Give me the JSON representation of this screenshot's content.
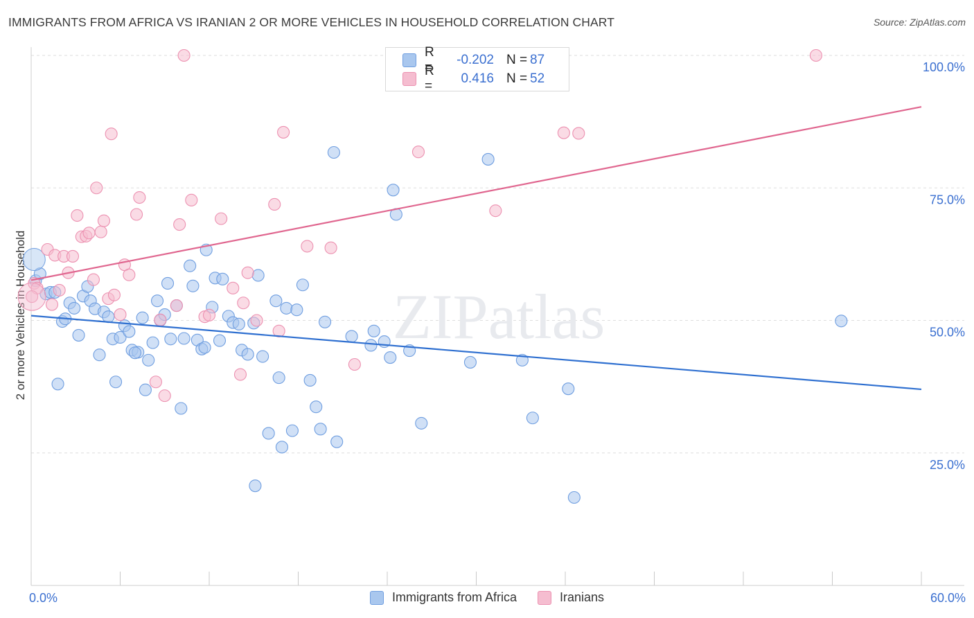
{
  "title": "IMMIGRANTS FROM AFRICA VS IRANIAN 2 OR MORE VEHICLES IN HOUSEHOLD CORRELATION CHART",
  "source": "Source: ZipAtlas.com",
  "watermark": "ZIPatlas",
  "legend_top": [
    {
      "r_label": "R =",
      "r_value": "-0.202",
      "n_label": "N =",
      "n_value": "87"
    },
    {
      "r_label": "R =",
      "r_value": "0.416",
      "n_label": "N =",
      "n_value": "52"
    }
  ],
  "legend_bottom": [
    "Immigrants from Africa",
    "Iranians"
  ],
  "x_tick_left": "0.0%",
  "x_tick_right": "60.0%",
  "colors": {
    "blue_fill": "#a9c7ee",
    "blue_stroke": "#6f9ee0",
    "blue_line": "#2e6fd0",
    "pink_fill": "#f5bdd0",
    "pink_stroke": "#ec90b0",
    "pink_line": "#e0668f",
    "tick_text": "#3a6fd0",
    "grid": "#dddddd"
  },
  "chart_data": {
    "type": "scatter",
    "title": "IMMIGRANTS FROM AFRICA VS IRANIAN 2 OR MORE VEHICLES IN HOUSEHOLD CORRELATION CHART",
    "xlabel": "",
    "ylabel": "2 or more Vehicles in Household",
    "xlim": [
      0,
      60
    ],
    "ylim": [
      0,
      105
    ],
    "y_ticks": [
      {
        "value": 25,
        "label": "25.0%"
      },
      {
        "value": 50,
        "label": "50.0%"
      },
      {
        "value": 75,
        "label": "75.0%"
      },
      {
        "value": 100,
        "label": "100.0%"
      }
    ],
    "grid": "horizontal dashed",
    "legend": "top-center and bottom",
    "series": [
      {
        "name": "Immigrants from Africa",
        "r": -0.202,
        "n": 87,
        "trend": [
          [
            0,
            50.9
          ],
          [
            60,
            37.0
          ]
        ],
        "points": [
          [
            0.3,
            57.5
          ],
          [
            0.6,
            58.8
          ],
          [
            1.0,
            55.0
          ],
          [
            1.3,
            55.3
          ],
          [
            1.6,
            55.3
          ],
          [
            1.8,
            38.0
          ],
          [
            2.1,
            49.8
          ],
          [
            2.3,
            50.3
          ],
          [
            2.6,
            53.3
          ],
          [
            2.9,
            52.3
          ],
          [
            3.2,
            47.2
          ],
          [
            3.5,
            54.6
          ],
          [
            3.8,
            56.4
          ],
          [
            4.0,
            53.7
          ],
          [
            4.3,
            52.2
          ],
          [
            4.6,
            43.5
          ],
          [
            4.9,
            51.6
          ],
          [
            5.2,
            50.7
          ],
          [
            5.5,
            46.5
          ],
          [
            5.7,
            38.4
          ],
          [
            6.0,
            46.8
          ],
          [
            6.3,
            49.0
          ],
          [
            6.6,
            47.9
          ],
          [
            6.8,
            44.4
          ],
          [
            7.2,
            44.0
          ],
          [
            7.5,
            50.5
          ],
          [
            7.7,
            36.9
          ],
          [
            7.9,
            42.5
          ],
          [
            8.2,
            45.8
          ],
          [
            8.5,
            53.7
          ],
          [
            8.7,
            50.0
          ],
          [
            9.0,
            51.1
          ],
          [
            9.2,
            57.0
          ],
          [
            9.4,
            46.5
          ],
          [
            9.8,
            52.8
          ],
          [
            10.1,
            33.4
          ],
          [
            10.3,
            46.6
          ],
          [
            10.7,
            60.3
          ],
          [
            10.9,
            56.5
          ],
          [
            11.2,
            46.3
          ],
          [
            11.5,
            44.6
          ],
          [
            11.8,
            63.3
          ],
          [
            12.2,
            52.5
          ],
          [
            12.4,
            58.0
          ],
          [
            12.7,
            46.2
          ],
          [
            12.9,
            57.8
          ],
          [
            13.3,
            50.8
          ],
          [
            13.6,
            49.6
          ],
          [
            14.0,
            49.3
          ],
          [
            14.2,
            44.4
          ],
          [
            14.6,
            43.6
          ],
          [
            15.0,
            49.5
          ],
          [
            15.3,
            58.5
          ],
          [
            15.6,
            43.2
          ],
          [
            16.0,
            28.7
          ],
          [
            16.5,
            53.7
          ],
          [
            16.7,
            39.2
          ],
          [
            16.9,
            26.1
          ],
          [
            17.2,
            52.3
          ],
          [
            17.6,
            29.2
          ],
          [
            17.9,
            52.0
          ],
          [
            18.3,
            56.7
          ],
          [
            18.8,
            38.7
          ],
          [
            19.2,
            33.7
          ],
          [
            19.5,
            29.5
          ],
          [
            19.8,
            49.7
          ],
          [
            20.4,
            81.7
          ],
          [
            20.6,
            27.1
          ],
          [
            21.6,
            47.0
          ],
          [
            22.9,
            45.3
          ],
          [
            23.1,
            48.0
          ],
          [
            23.8,
            46.0
          ],
          [
            24.2,
            43.0
          ],
          [
            24.4,
            74.6
          ],
          [
            24.6,
            70.0
          ],
          [
            25.5,
            44.3
          ],
          [
            26.3,
            30.6
          ],
          [
            29.6,
            42.1
          ],
          [
            30.8,
            80.4
          ],
          [
            33.1,
            42.5
          ],
          [
            33.8,
            31.6
          ],
          [
            36.2,
            37.1
          ],
          [
            36.6,
            16.6
          ],
          [
            15.1,
            18.8
          ],
          [
            11.7,
            44.9
          ],
          [
            7.0,
            43.9
          ],
          [
            54.6,
            49.9
          ]
        ]
      },
      {
        "name": "Iranians",
        "r": 0.416,
        "n": 52,
        "trend": [
          [
            0,
            57.6
          ],
          [
            60,
            90.3
          ]
        ],
        "points": [
          [
            0.2,
            57.0
          ],
          [
            0.4,
            56.1
          ],
          [
            1.1,
            63.4
          ],
          [
            1.4,
            53.0
          ],
          [
            1.6,
            62.3
          ],
          [
            1.9,
            55.7
          ],
          [
            2.2,
            62.1
          ],
          [
            2.5,
            59.0
          ],
          [
            2.8,
            62.1
          ],
          [
            3.1,
            69.8
          ],
          [
            3.4,
            65.8
          ],
          [
            3.7,
            65.9
          ],
          [
            3.9,
            66.5
          ],
          [
            4.2,
            57.7
          ],
          [
            4.4,
            75.0
          ],
          [
            4.7,
            66.7
          ],
          [
            4.9,
            68.8
          ],
          [
            5.2,
            54.1
          ],
          [
            5.4,
            85.2
          ],
          [
            5.6,
            54.8
          ],
          [
            6.0,
            51.1
          ],
          [
            6.3,
            60.5
          ],
          [
            6.6,
            58.6
          ],
          [
            7.1,
            70.0
          ],
          [
            7.3,
            73.2
          ],
          [
            8.4,
            38.4
          ],
          [
            8.7,
            50.1
          ],
          [
            9.0,
            35.8
          ],
          [
            9.8,
            52.8
          ],
          [
            10.0,
            68.1
          ],
          [
            10.3,
            100.0
          ],
          [
            10.8,
            72.7
          ],
          [
            11.7,
            50.7
          ],
          [
            12.0,
            51.0
          ],
          [
            12.8,
            69.2
          ],
          [
            13.6,
            56.1
          ],
          [
            14.1,
            39.8
          ],
          [
            14.3,
            53.3
          ],
          [
            14.6,
            59.0
          ],
          [
            15.2,
            50.0
          ],
          [
            16.4,
            71.9
          ],
          [
            16.7,
            48.0
          ],
          [
            17.0,
            85.5
          ],
          [
            18.6,
            64.0
          ],
          [
            20.2,
            63.7
          ],
          [
            21.8,
            41.7
          ],
          [
            26.1,
            81.8
          ],
          [
            31.3,
            70.7
          ],
          [
            35.9,
            85.4
          ],
          [
            36.9,
            85.3
          ],
          [
            52.9,
            100.0
          ],
          [
            0.05,
            54.5
          ]
        ]
      }
    ]
  }
}
